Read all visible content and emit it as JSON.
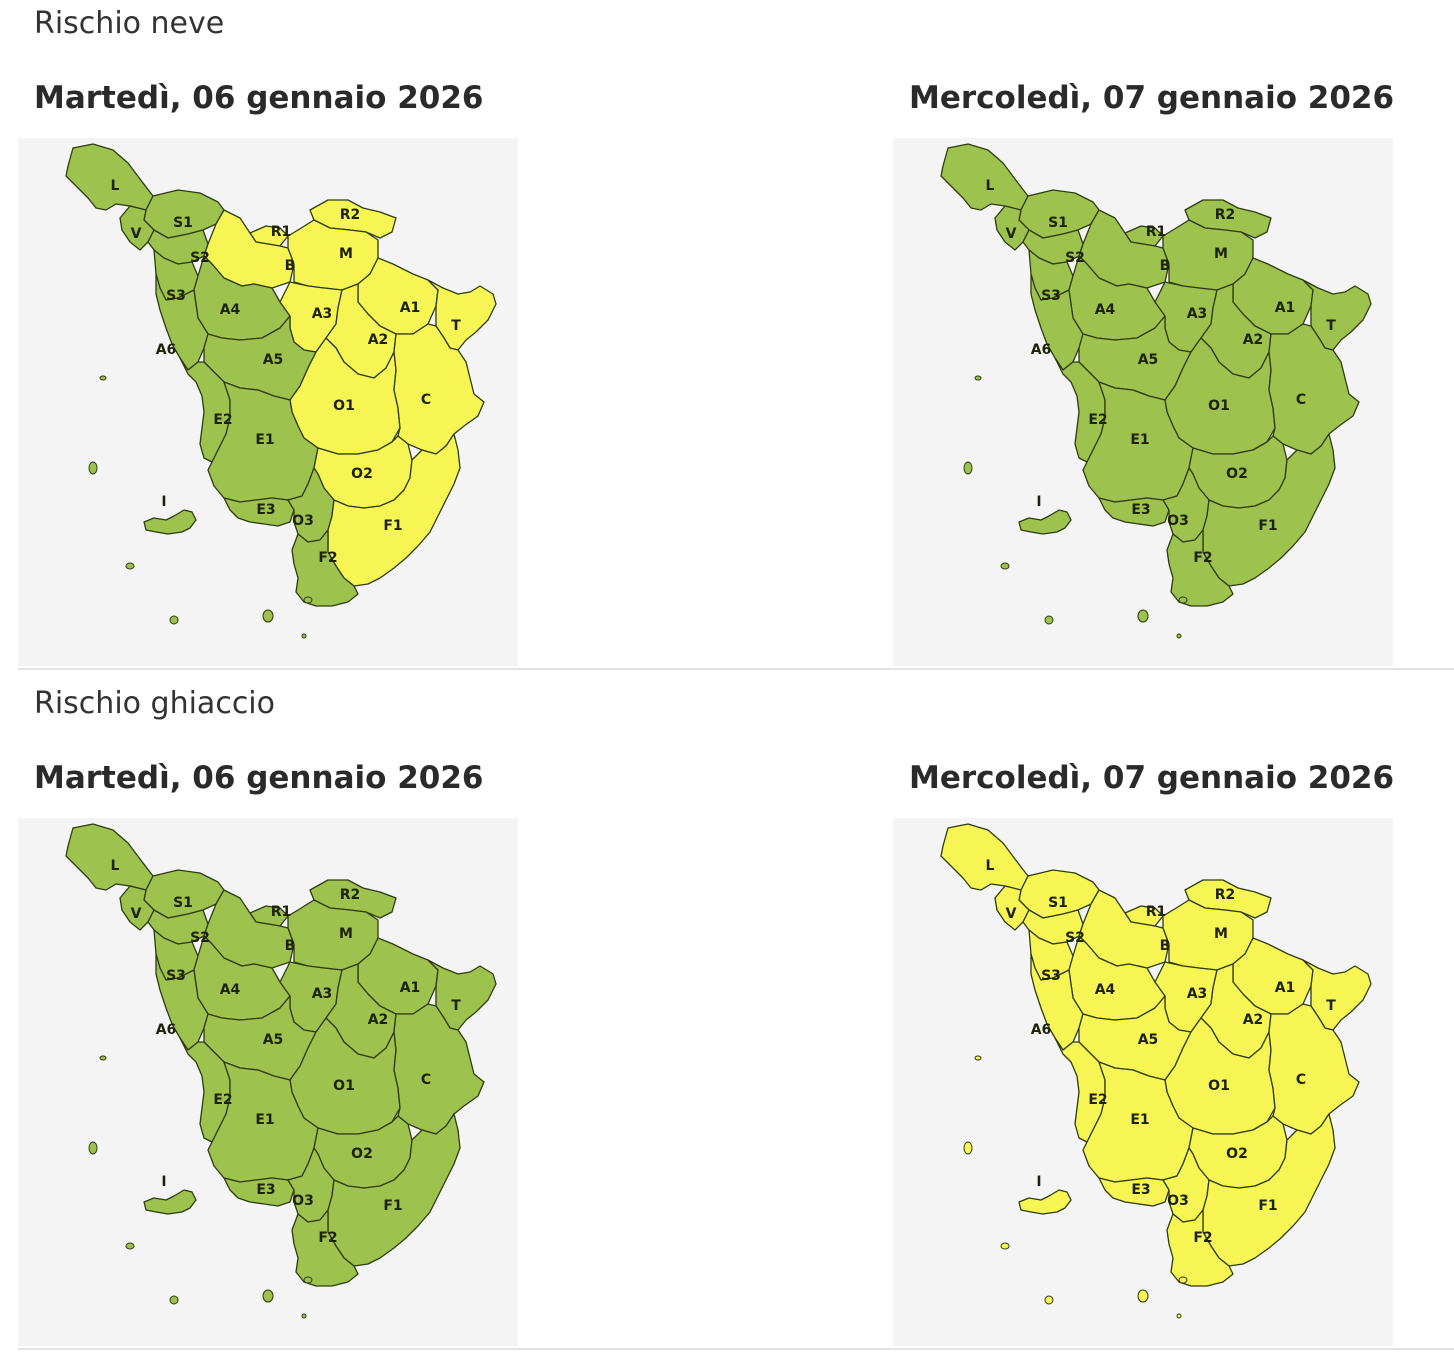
{
  "colors": {
    "green": "#9dc24d",
    "yellow": "#f7f553",
    "map_background": "#f4f4f4",
    "border": "#2e3c10"
  },
  "zone_labels": [
    "L",
    "S1",
    "V",
    "S2",
    "S3",
    "R1",
    "R2",
    "B",
    "M",
    "A4",
    "A3",
    "A1",
    "T",
    "A2",
    "A6",
    "A5",
    "O1",
    "C",
    "E2",
    "E1",
    "O2",
    "I",
    "E3",
    "O3",
    "F1",
    "F2"
  ],
  "sections": [
    {
      "title": "Rischio neve",
      "days": [
        {
          "date": "Martedì, 06 gennaio 2026",
          "levels": {
            "L": "green",
            "S1": "green",
            "V": "green",
            "S2": "green",
            "S3": "green",
            "R1": "yellow",
            "R2": "yellow",
            "B": "yellow",
            "M": "yellow",
            "A4": "green",
            "A3": "yellow",
            "A1": "yellow",
            "T": "yellow",
            "A2": "yellow",
            "A6": "green",
            "A5": "green",
            "O1": "yellow",
            "C": "yellow",
            "E2": "green",
            "E1": "green",
            "O2": "yellow",
            "I": "green",
            "E3": "green",
            "O3": "green",
            "F1": "yellow",
            "F2": "green"
          }
        },
        {
          "date": "Mercoledì, 07 gennaio 2026",
          "levels": {
            "L": "green",
            "S1": "green",
            "V": "green",
            "S2": "green",
            "S3": "green",
            "R1": "green",
            "R2": "green",
            "B": "green",
            "M": "green",
            "A4": "green",
            "A3": "green",
            "A1": "green",
            "T": "green",
            "A2": "green",
            "A6": "green",
            "A5": "green",
            "O1": "green",
            "C": "green",
            "E2": "green",
            "E1": "green",
            "O2": "green",
            "I": "green",
            "E3": "green",
            "O3": "green",
            "F1": "green",
            "F2": "green"
          }
        }
      ]
    },
    {
      "title": "Rischio ghiaccio",
      "days": [
        {
          "date": "Martedì, 06 gennaio 2026",
          "levels": {
            "L": "green",
            "S1": "green",
            "V": "green",
            "S2": "green",
            "S3": "green",
            "R1": "green",
            "R2": "green",
            "B": "green",
            "M": "green",
            "A4": "green",
            "A3": "green",
            "A1": "green",
            "T": "green",
            "A2": "green",
            "A6": "green",
            "A5": "green",
            "O1": "green",
            "C": "green",
            "E2": "green",
            "E1": "green",
            "O2": "green",
            "I": "green",
            "E3": "green",
            "O3": "green",
            "F1": "green",
            "F2": "green"
          }
        },
        {
          "date": "Mercoledì, 07 gennaio 2026",
          "levels": {
            "L": "yellow",
            "S1": "yellow",
            "V": "yellow",
            "S2": "yellow",
            "S3": "yellow",
            "R1": "yellow",
            "R2": "yellow",
            "B": "yellow",
            "M": "yellow",
            "A4": "yellow",
            "A3": "yellow",
            "A1": "yellow",
            "T": "yellow",
            "A2": "yellow",
            "A6": "yellow",
            "A5": "yellow",
            "O1": "yellow",
            "C": "yellow",
            "E2": "yellow",
            "E1": "yellow",
            "O2": "yellow",
            "I": "yellow",
            "E3": "yellow",
            "O3": "yellow",
            "F1": "yellow",
            "F2": "yellow"
          }
        }
      ]
    }
  ]
}
